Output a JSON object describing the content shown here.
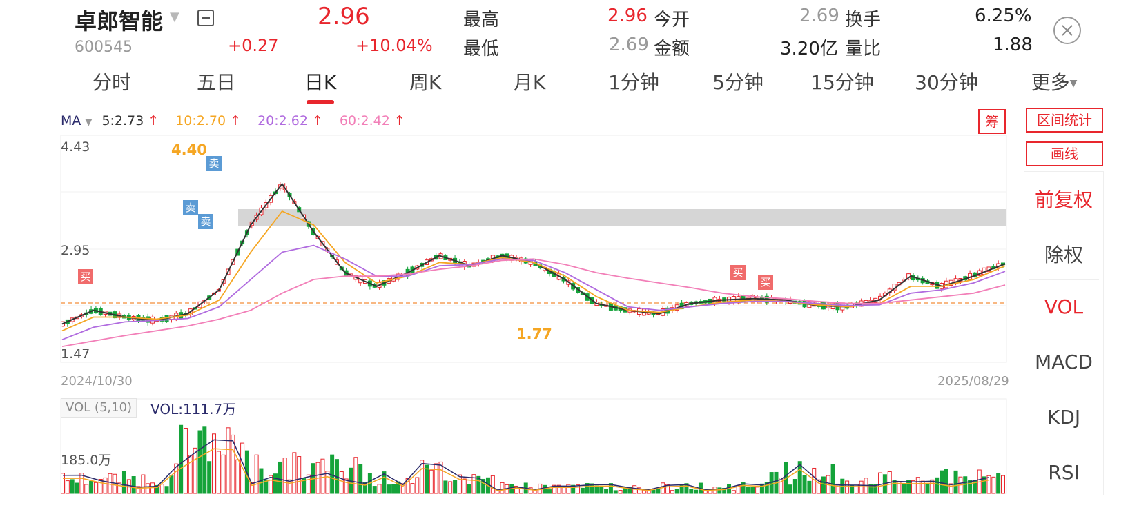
{
  "stock": {
    "name": "卓郎智能",
    "code": "600545",
    "price": "2.96",
    "change": "+0.27",
    "change_pct": "+10.04%"
  },
  "quote": {
    "high_label": "最高",
    "high": "2.96",
    "low_label": "最低",
    "low": "2.69",
    "open_label": "今开",
    "open": "2.69",
    "amount_label": "金额",
    "amount": "3.20亿",
    "turnover_label": "换手",
    "turnover": "6.25%",
    "volume_ratio_label": "量比",
    "volume_ratio": "1.88"
  },
  "tabs": [
    {
      "label": "分时"
    },
    {
      "label": "五日"
    },
    {
      "label": "日K"
    },
    {
      "label": "周K"
    },
    {
      "label": "月K"
    },
    {
      "label": "1分钟"
    },
    {
      "label": "5分钟"
    },
    {
      "label": "15分钟"
    },
    {
      "label": "30分钟"
    },
    {
      "label": "更多"
    }
  ],
  "ma": {
    "label": "MA",
    "ma5": "5:2.73",
    "ma10": "10:2.70",
    "ma20": "20:2.62",
    "ma60": "60:2.42"
  },
  "side": {
    "chip": "筹",
    "interval_stats": "区间统计",
    "draw_line": "画线",
    "items": [
      "前复权",
      "除权",
      "VOL",
      "MACD",
      "KDJ",
      "RSI"
    ]
  },
  "chart": {
    "axis_high": "4.43",
    "axis_mid": "2.95",
    "axis_low": "1.47",
    "peak_label": "4.40",
    "trough_label": "1.77",
    "date_start": "2024/10/30",
    "date_end": "2025/08/29",
    "buy_mark": "买",
    "sell_mark": "卖"
  },
  "volume": {
    "label": "VOL (5,10)",
    "value": "VOL:111.7万",
    "axis_label": "185.0万"
  },
  "colors": {
    "up": "#e8262d",
    "down": "#15a33a",
    "ma5": "#333333",
    "ma10": "#f5a623",
    "ma20": "#b06bdf",
    "ma60": "#f27fb8",
    "resistance_band": "#d6d6d6",
    "accent": "#e8262d"
  },
  "chart_data": {
    "type": "line",
    "title": "",
    "xlabel": "",
    "ylabel": "",
    "x_range": [
      "2024/10/30",
      "2025/08/29"
    ],
    "ylim": [
      1.47,
      4.43
    ],
    "series": [
      {
        "name": "5:2.73",
        "values": [
          1.85,
          2.05,
          1.95,
          1.9,
          2.0,
          2.35,
          3.3,
          3.9,
          3.2,
          2.6,
          2.4,
          2.6,
          2.85,
          2.7,
          2.85,
          2.75,
          2.5,
          2.15,
          2.05,
          2.0,
          2.15,
          2.2,
          2.22,
          2.2,
          2.12,
          2.1,
          2.2,
          2.55,
          2.4,
          2.55,
          2.73
        ]
      },
      {
        "name": "10:2.70",
        "values": [
          1.75,
          1.95,
          1.95,
          1.92,
          1.98,
          2.2,
          2.9,
          3.5,
          3.3,
          2.75,
          2.45,
          2.55,
          2.75,
          2.72,
          2.82,
          2.75,
          2.55,
          2.25,
          2.05,
          2.02,
          2.1,
          2.17,
          2.2,
          2.18,
          2.13,
          2.1,
          2.15,
          2.4,
          2.4,
          2.5,
          2.7
        ]
      },
      {
        "name": "20:2.62",
        "values": [
          1.62,
          1.8,
          1.88,
          1.9,
          1.93,
          2.1,
          2.5,
          2.9,
          3.0,
          2.8,
          2.55,
          2.55,
          2.7,
          2.72,
          2.8,
          2.78,
          2.6,
          2.35,
          2.1,
          2.05,
          2.1,
          2.15,
          2.18,
          2.18,
          2.15,
          2.12,
          2.13,
          2.3,
          2.35,
          2.45,
          2.62
        ]
      },
      {
        "name": "60:2.42",
        "values": [
          1.52,
          1.6,
          1.68,
          1.75,
          1.82,
          1.92,
          2.05,
          2.3,
          2.5,
          2.55,
          2.55,
          2.58,
          2.65,
          2.7,
          2.78,
          2.8,
          2.72,
          2.6,
          2.52,
          2.45,
          2.38,
          2.3,
          2.25,
          2.22,
          2.18,
          2.15,
          2.15,
          2.2,
          2.25,
          2.3,
          2.42
        ]
      }
    ],
    "annotations": [
      {
        "text": "4.40",
        "type": "high"
      },
      {
        "text": "1.77",
        "type": "low"
      }
    ],
    "grid": true,
    "legend": "top-left"
  }
}
